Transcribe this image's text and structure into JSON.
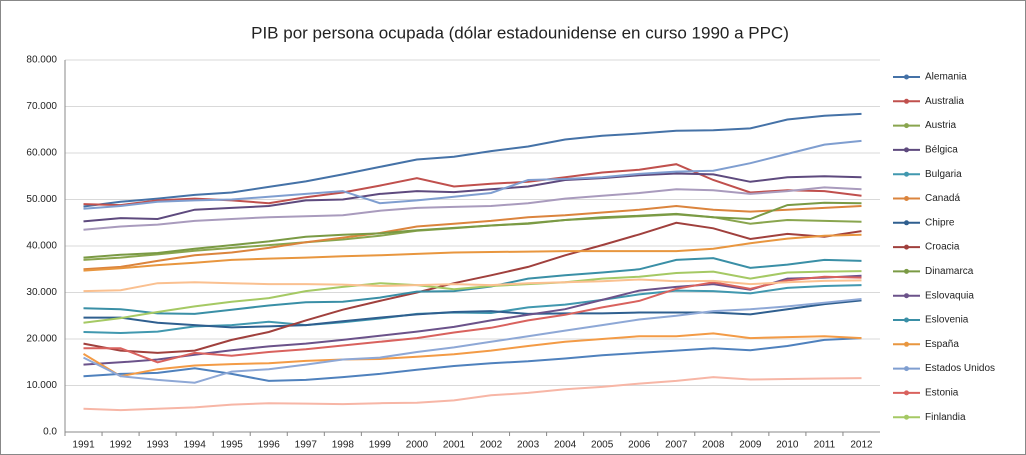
{
  "chart_data": {
    "type": "line",
    "title": "PIB por persona ocupada (dólar estadounidense en curso 1990 a PPC)",
    "categories": [
      "1991",
      "1992",
      "1993",
      "1994",
      "1995",
      "1996",
      "1997",
      "1998",
      "1999",
      "2000",
      "2001",
      "2002",
      "2003",
      "2004",
      "2005",
      "2006",
      "2007",
      "2008",
      "2009",
      "2010",
      "2011",
      "2012"
    ],
    "ylim": [
      0,
      80000
    ],
    "yticks": [
      {
        "value": 0,
        "label": "0.0"
      },
      {
        "value": 10000,
        "label": "10.000"
      },
      {
        "value": 20000,
        "label": "20.000"
      },
      {
        "value": 30000,
        "label": "30.000"
      },
      {
        "value": 40000,
        "label": "40.000"
      },
      {
        "value": 50000,
        "label": "50.000"
      },
      {
        "value": 60000,
        "label": "60.000"
      },
      {
        "value": 70000,
        "label": "70.000"
      },
      {
        "value": 80000,
        "label": "80.000"
      }
    ],
    "grid": true,
    "legend": "right",
    "series": [
      {
        "name": "Alemania",
        "color": "#4572A7",
        "values": [
          48500,
          49500,
          50200,
          51000,
          51500,
          52700,
          53900,
          55400,
          57000,
          58600,
          59200,
          60400,
          61400,
          62900,
          63700,
          64200,
          64800,
          64900,
          65300,
          67200,
          68000,
          68400
        ]
      },
      {
        "name": "Australia",
        "color": "#C0504D",
        "values": [
          49000,
          48800,
          49800,
          50200,
          49800,
          49200,
          50500,
          51500,
          53000,
          54600,
          52800,
          53400,
          53800,
          54800,
          55800,
          56400,
          57600,
          54200,
          51500,
          52000,
          51800,
          50800
        ]
      },
      {
        "name": "Austria",
        "color": "#89A54E",
        "values": [
          37000,
          37500,
          38200,
          39000,
          39600,
          40200,
          40800,
          41400,
          42200,
          43300,
          43800,
          44400,
          44900,
          45600,
          46000,
          46400,
          46800,
          46200,
          44800,
          45600,
          45400,
          45200
        ]
      },
      {
        "name": "Bélgica",
        "color": "#5E4A7E",
        "values": [
          45300,
          46000,
          45800,
          47800,
          48200,
          48600,
          49800,
          50000,
          51200,
          51800,
          51600,
          52200,
          52800,
          54200,
          54600,
          55200,
          55600,
          55400,
          53800,
          54800,
          55000,
          54800
        ]
      },
      {
        "name": "Bulgaria",
        "color": "#4198AF",
        "values": [
          21500,
          21300,
          21600,
          22700,
          23000,
          23700,
          23000,
          23600,
          24400,
          25400,
          25700,
          25600,
          26800,
          27400,
          28400,
          29600,
          30400,
          30300,
          29800,
          31000,
          31400,
          31600
        ]
      },
      {
        "name": "Canadá",
        "color": "#DB843D",
        "values": [
          35000,
          35500,
          36800,
          38000,
          38600,
          39600,
          40800,
          41800,
          42800,
          44200,
          44800,
          45400,
          46200,
          46600,
          47200,
          47800,
          48600,
          47800,
          47400,
          47800,
          48200,
          48600
        ]
      },
      {
        "name": "Chipre",
        "color": "#2F5F8F",
        "values": [
          24600,
          24600,
          23500,
          23000,
          22500,
          22700,
          23000,
          23800,
          24600,
          25300,
          25800,
          26000,
          25400,
          25500,
          25500,
          25700,
          25700,
          25700,
          25300,
          26400,
          27500,
          28300
        ]
      },
      {
        "name": "Croacia",
        "color": "#A0403D",
        "values": [
          19000,
          17500,
          17000,
          17500,
          19800,
          21500,
          24000,
          26300,
          28200,
          30000,
          32000,
          33700,
          35500,
          38000,
          40200,
          42500,
          45000,
          43800,
          41500,
          42600,
          42000,
          43200
        ]
      },
      {
        "name": "Dinamarca",
        "color": "#7A9A44",
        "values": [
          37500,
          38100,
          38500,
          39400,
          40200,
          41000,
          42000,
          42400,
          42700,
          43400,
          43900,
          44400,
          44800,
          45600,
          46200,
          46500,
          46900,
          46200,
          45800,
          48800,
          49300,
          49200
        ]
      },
      {
        "name": "Eslovaquia",
        "color": "#6B528A",
        "values": [
          14500,
          15000,
          15600,
          16600,
          17600,
          18400,
          19000,
          19800,
          20700,
          21600,
          22600,
          24000,
          25200,
          26400,
          28400,
          30400,
          31200,
          31800,
          30600,
          33000,
          33200,
          33600
        ]
      },
      {
        "name": "Eslovenia",
        "color": "#3A8FA6",
        "values": [
          26600,
          26400,
          25500,
          25400,
          26300,
          27200,
          27900,
          28000,
          28900,
          30200,
          30300,
          31300,
          33000,
          33700,
          34300,
          35000,
          37000,
          37400,
          35300,
          36000,
          37000,
          36800
        ]
      },
      {
        "name": "España",
        "color": "#E8963F",
        "values": [
          34700,
          35200,
          35900,
          36400,
          37000,
          37300,
          37500,
          37800,
          38000,
          38300,
          38600,
          38700,
          38800,
          38900,
          38900,
          38900,
          38900,
          39400,
          40600,
          41600,
          42200,
          42400
        ]
      },
      {
        "name": "Estados Unidos",
        "color": "#7F9ED0",
        "values": [
          48000,
          48600,
          49500,
          49800,
          50000,
          50600,
          51200,
          51800,
          49200,
          49800,
          50600,
          51400,
          54200,
          54400,
          54800,
          55500,
          56000,
          56200,
          57800,
          59800,
          61800,
          62600
        ]
      },
      {
        "name": "Estonia",
        "color": "#D9625E",
        "values": [
          18000,
          18000,
          15000,
          17000,
          16400,
          17200,
          17800,
          18600,
          19400,
          20200,
          21400,
          22400,
          24000,
          25200,
          26800,
          28200,
          30800,
          32200,
          30800,
          32600,
          33400,
          33200
        ]
      },
      {
        "name": "Finlandia",
        "color": "#A5C964",
        "values": [
          23500,
          24500,
          25800,
          27000,
          28000,
          28800,
          30300,
          31200,
          32000,
          31600,
          30700,
          31400,
          31800,
          32200,
          33000,
          33400,
          34200,
          34500,
          33000,
          34300,
          34500,
          34600
        ]
      },
      {
        "color": "#F7B6A6",
        "values": [
          5000,
          4700,
          5000,
          5300,
          5900,
          6200,
          6100,
          6000,
          6200,
          6300,
          6800,
          7900,
          8400,
          9200,
          9700,
          10400,
          11000,
          11800,
          11300,
          11400,
          11500,
          11600
        ]
      },
      {
        "color": "#4F81BD",
        "values": [
          12000,
          12500,
          12700,
          13700,
          12500,
          11000,
          11200,
          11800,
          12500,
          13400,
          14200,
          14800,
          15200,
          15800,
          16500,
          17000,
          17500,
          18000,
          17600,
          18500,
          19800,
          20200
        ]
      },
      {
        "color": "#F39B46",
        "values": [
          16800,
          12000,
          13500,
          14300,
          14600,
          14800,
          15300,
          15600,
          15700,
          16200,
          16700,
          17500,
          18500,
          19400,
          20000,
          20600,
          20600,
          21200,
          20200,
          20400,
          20600,
          20200
        ]
      },
      {
        "color": "#8EA8D6",
        "values": [
          16000,
          12000,
          11200,
          10600,
          13000,
          13500,
          14500,
          15600,
          16000,
          17200,
          18200,
          19400,
          20600,
          21800,
          23000,
          24200,
          25000,
          26000,
          26400,
          27000,
          27800,
          28600
        ]
      },
      {
        "color": "#FAC090",
        "values": [
          30300,
          30500,
          32000,
          32200,
          32000,
          31800,
          31800,
          31700,
          31400,
          31600,
          31800,
          31600,
          32000,
          32200,
          32400,
          32800,
          32400,
          32500,
          31800,
          32200,
          32500,
          32600
        ]
      },
      {
        "color": "#A99BBD",
        "values": [
          43500,
          44200,
          44600,
          45400,
          45800,
          46200,
          46400,
          46600,
          47600,
          48200,
          48400,
          48600,
          49200,
          50200,
          50800,
          51400,
          52200,
          52000,
          51200,
          51800,
          52600,
          52200
        ]
      }
    ]
  }
}
